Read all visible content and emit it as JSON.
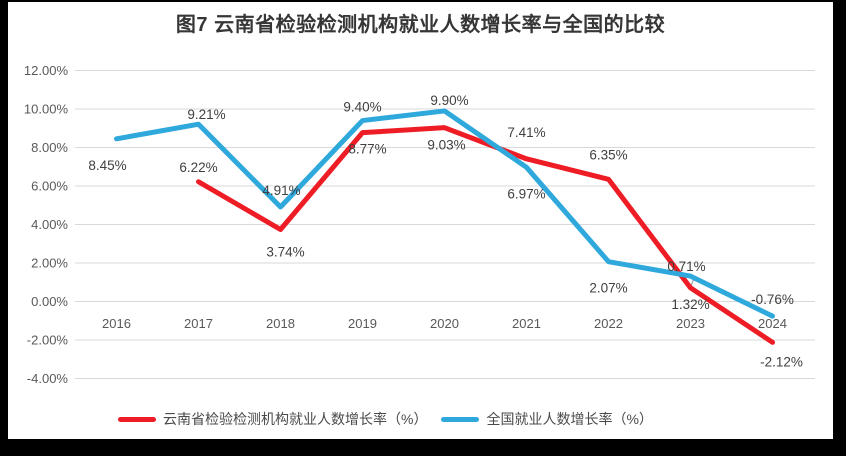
{
  "colors": {
    "frame_bg": "#000000",
    "panel_bg": "#ffffff",
    "grid": "#d9d9d9",
    "axis_text": "#595959",
    "label_text": "#404040",
    "title_text": "#363636",
    "leader": "#a0a0a0"
  },
  "chart_data": {
    "type": "line",
    "title": "图7  云南省检验检测机构就业人数增长率与全国的比较",
    "categories": [
      "2016",
      "2017",
      "2018",
      "2019",
      "2020",
      "2021",
      "2022",
      "2023",
      "2024"
    ],
    "ylim": [
      -4,
      12
    ],
    "ytick_step": 2,
    "ytick_labels": [
      "12.00%",
      "10.00%",
      "8.00%",
      "6.00%",
      "4.00%",
      "2.00%",
      "0.00%",
      "-2.00%",
      "-4.00%"
    ],
    "grid": true,
    "legend_position": "bottom",
    "series": [
      {
        "key": "yunnan",
        "name": "云南省检验检测机构就业人数增长率（%）",
        "color": "#ee1c25",
        "values": [
          null,
          6.22,
          3.74,
          8.77,
          9.03,
          7.41,
          6.35,
          0.71,
          -2.12
        ],
        "labels": [
          null,
          "6.22%",
          "3.74%",
          "8.77%",
          "9.03%",
          "7.41%",
          "6.35%",
          "0.71%",
          "-2.12%"
        ]
      },
      {
        "key": "national",
        "name": "全国就业人数增长率（%）",
        "color": "#2fa8dc",
        "values": [
          8.45,
          9.21,
          4.91,
          9.4,
          9.9,
          6.97,
          2.07,
          1.32,
          -0.76
        ],
        "labels": [
          "8.45%",
          "9.21%",
          "4.91%",
          "9.40%",
          "9.90%",
          "6.97%",
          "2.07%",
          "1.32%",
          "-0.76%"
        ]
      }
    ]
  }
}
